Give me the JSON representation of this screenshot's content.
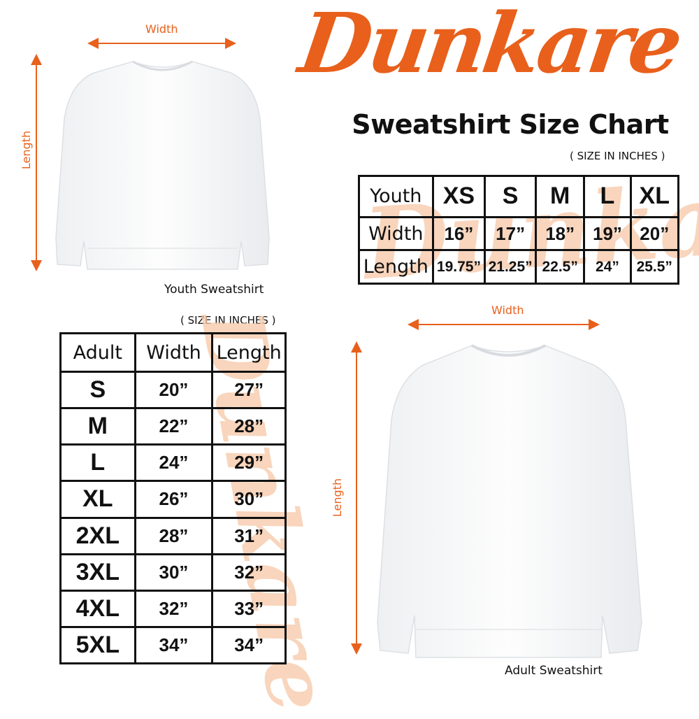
{
  "brand": {
    "logo_text": "Dunkare",
    "accent_color": "#e8601c"
  },
  "title": "Sweatshirt Size Chart",
  "youth": {
    "image_caption": "Youth Sweatshirt",
    "width_label": "Width",
    "length_label": "Length",
    "unit_note": "( SIZE IN INCHES )",
    "table": {
      "header": [
        "Youth",
        "XS",
        "S",
        "M",
        "L",
        "XL"
      ],
      "rows": [
        [
          "Width",
          "16”",
          "17”",
          "18”",
          "19”",
          "20”"
        ],
        [
          "Length",
          "19.75”",
          "21.25”",
          "22.5”",
          "24”",
          "25.5”"
        ]
      ]
    }
  },
  "adult": {
    "image_caption": "Adult Sweatshirt",
    "width_label": "Width",
    "length_label": "Length",
    "unit_note": "( SIZE IN INCHES )",
    "table": {
      "header": [
        "Adult",
        "Width",
        "Length"
      ],
      "rows": [
        [
          "S",
          "20”",
          "27”"
        ],
        [
          "M",
          "22”",
          "28”"
        ],
        [
          "L",
          "24”",
          "29”"
        ],
        [
          "XL",
          "26”",
          "30”"
        ],
        [
          "2XL",
          "28”",
          "31”"
        ],
        [
          "3XL",
          "30”",
          "32”"
        ],
        [
          "4XL",
          "32”",
          "33”"
        ],
        [
          "5XL",
          "34”",
          "34”"
        ]
      ]
    }
  }
}
